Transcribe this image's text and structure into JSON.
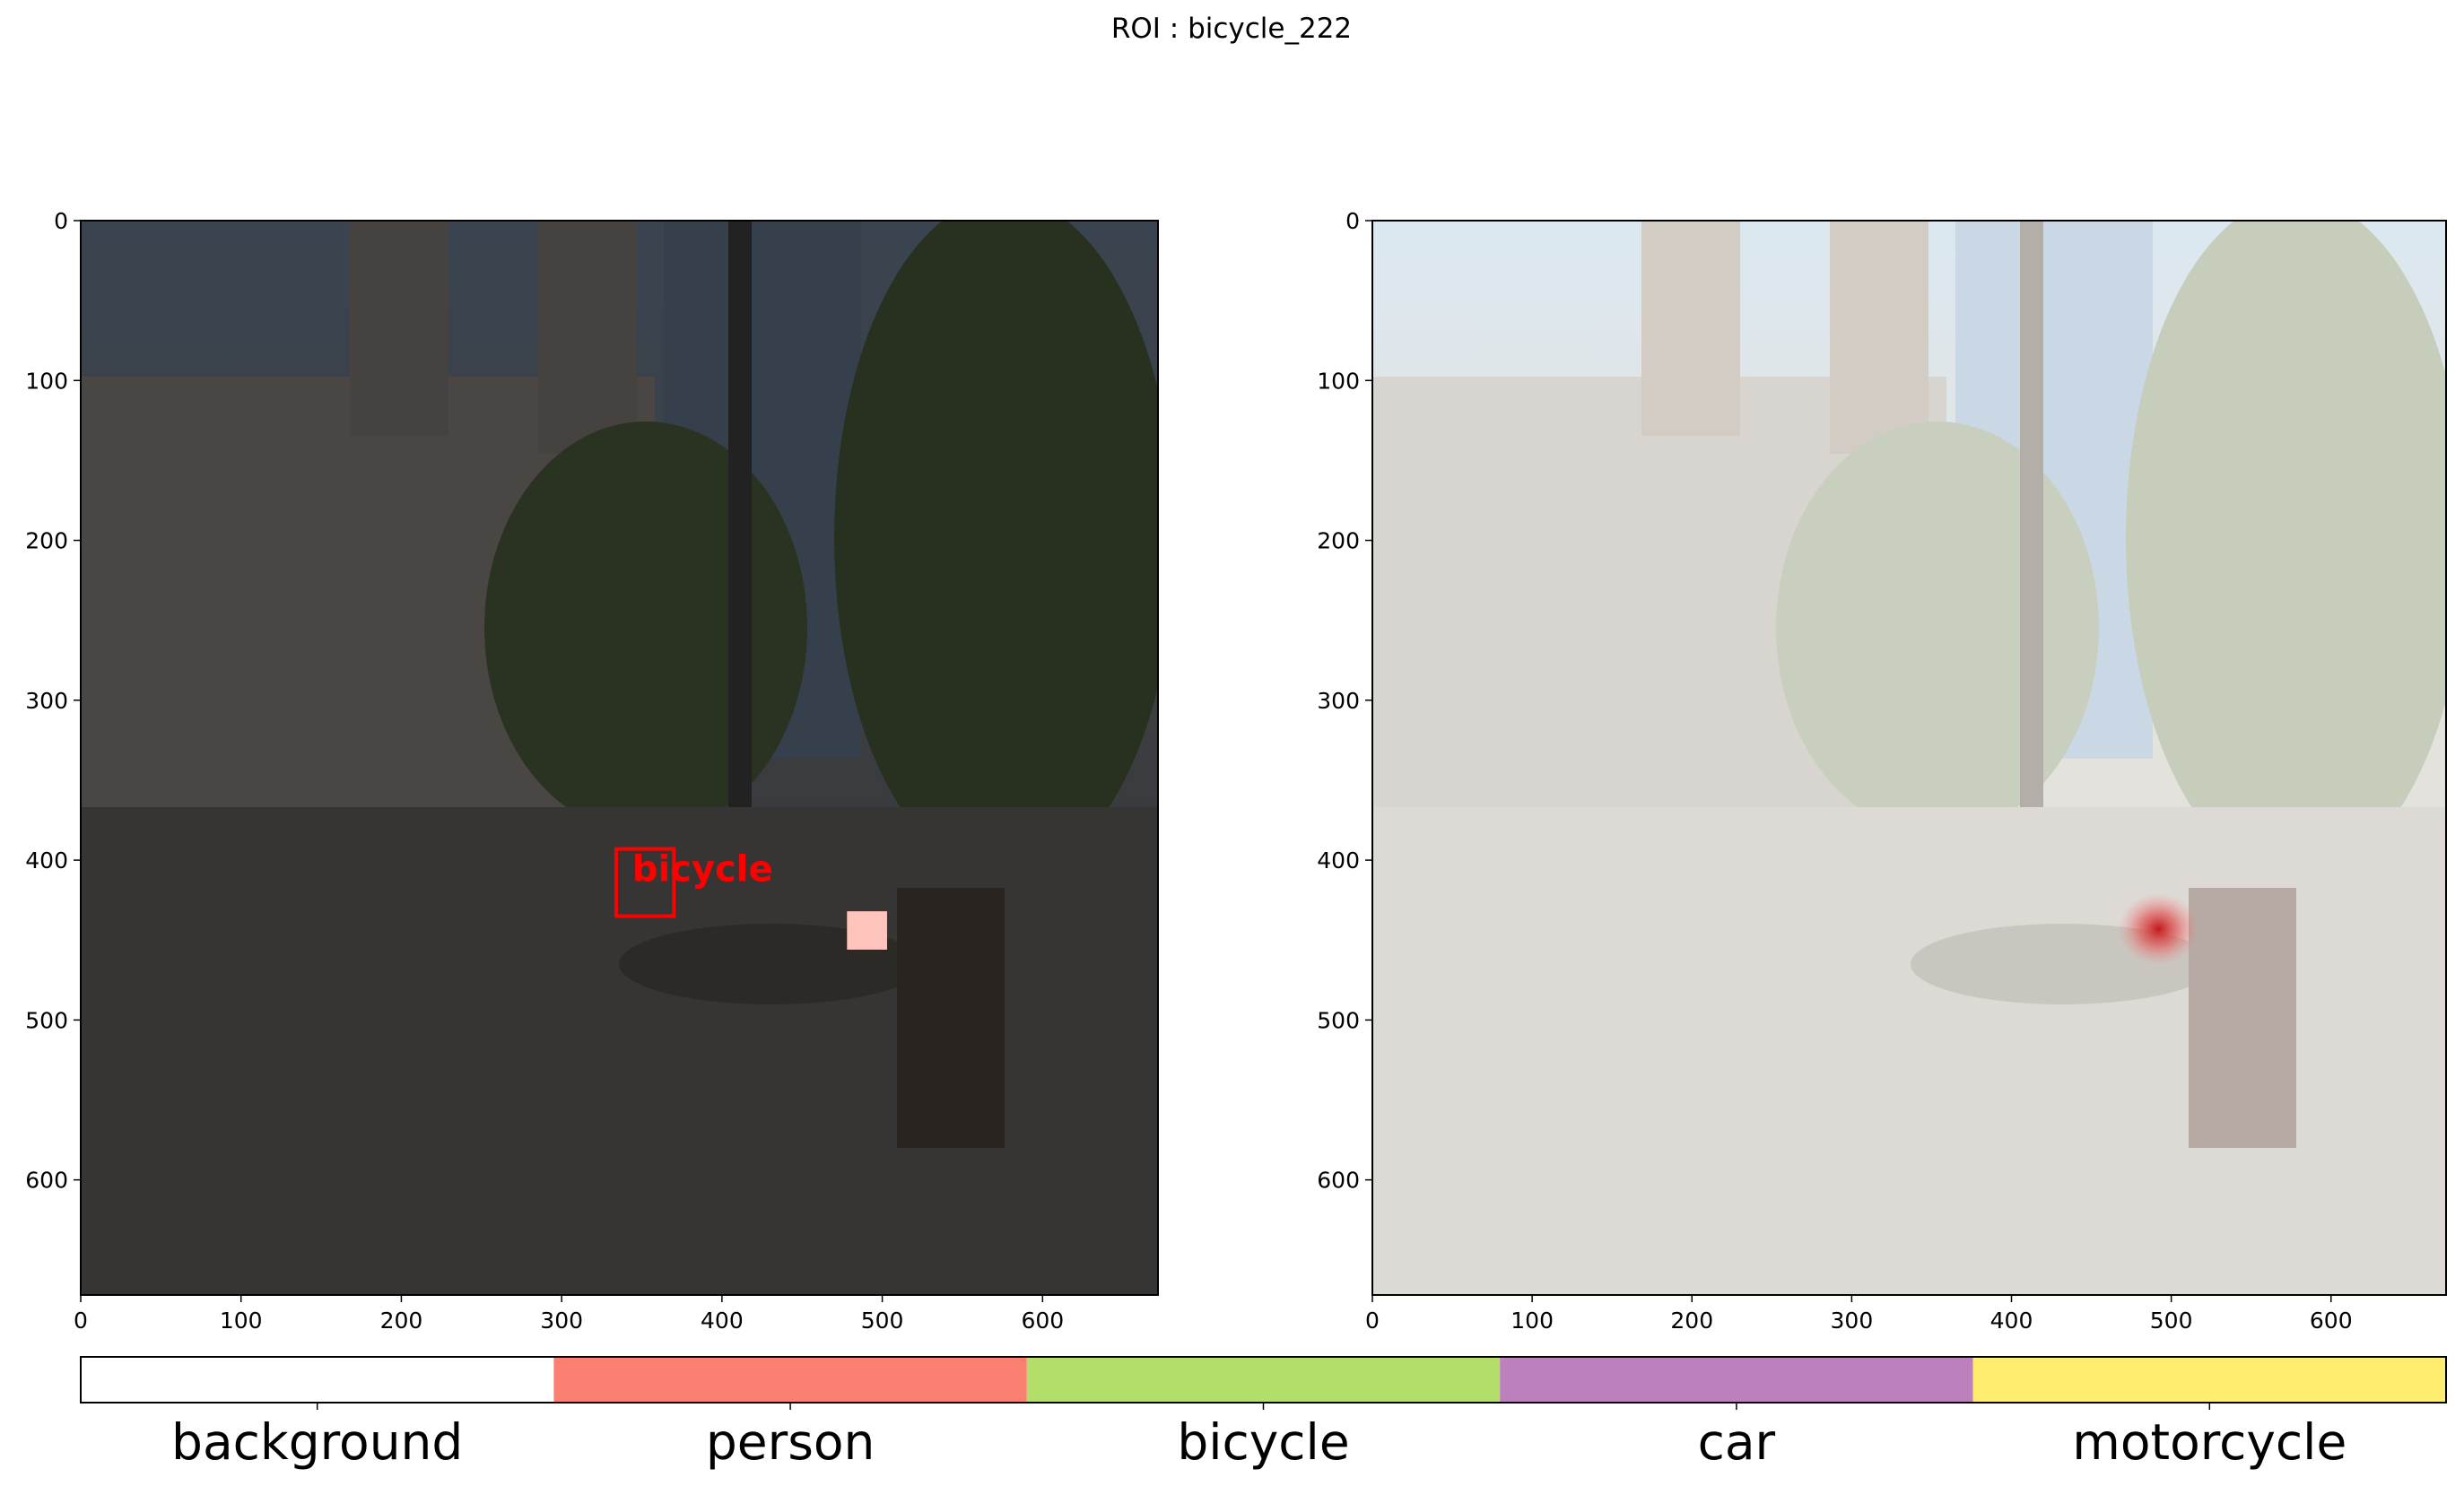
{
  "title": "ROI : bicycle_222",
  "chart_data": [
    {
      "type": "image",
      "panel": "left",
      "xlim": [
        0,
        672
      ],
      "ylim": [
        672,
        0
      ],
      "xticks": [
        0,
        100,
        200,
        300,
        400,
        500,
        600
      ],
      "yticks": [
        0,
        100,
        200,
        300,
        400,
        500,
        600
      ],
      "overlay": "darkened",
      "annotations": [
        {
          "kind": "bbox",
          "label": "bicycle",
          "color": "#ff0000",
          "x0": 334,
          "y0": 393,
          "x1": 370,
          "y1": 435
        },
        {
          "kind": "roi-square",
          "color": "#ffc4bc",
          "x0": 478,
          "y0": 432,
          "x1": 503,
          "y1": 456
        }
      ]
    },
    {
      "type": "image",
      "panel": "right",
      "xlim": [
        0,
        672
      ],
      "ylim": [
        672,
        0
      ],
      "xticks": [
        0,
        100,
        200,
        300,
        400,
        500,
        600
      ],
      "yticks": [
        0,
        100,
        200,
        300,
        400,
        500,
        600
      ],
      "overlay": "whitened",
      "annotations": [
        {
          "kind": "heat-spot",
          "color": "#d02020",
          "x": 492,
          "y": 443
        }
      ]
    }
  ],
  "legend": {
    "items": [
      {
        "label": "background",
        "color": "#ffffff"
      },
      {
        "label": "person",
        "color": "#fb8072"
      },
      {
        "label": "bicycle",
        "color": "#b3de69"
      },
      {
        "label": "car",
        "color": "#bc80bd"
      },
      {
        "label": "motorcycle",
        "color": "#ffed6f"
      }
    ]
  }
}
